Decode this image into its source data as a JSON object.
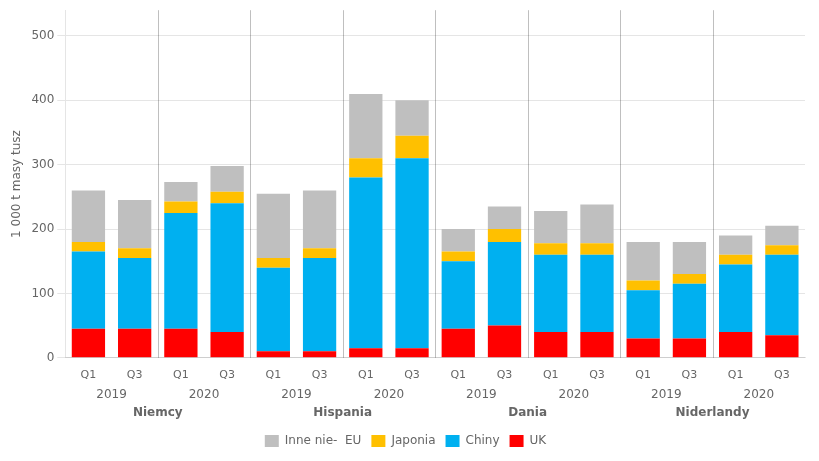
{
  "chart_data": {
    "type": "bar",
    "stacked": true,
    "ylabel": "1 000 t masy tusz",
    "categories": [
      [
        "Q1",
        "2019",
        "Niemcy"
      ],
      [
        "Q3",
        "2019",
        "Niemcy"
      ],
      [
        "Q1",
        "2020",
        "Niemcy"
      ],
      [
        "Q3",
        "2020",
        "Niemcy"
      ],
      [
        "Q1",
        "2019",
        "Hispania"
      ],
      [
        "Q3",
        "2019",
        "Hispania"
      ],
      [
        "Q1",
        "2020",
        "Hispania"
      ],
      [
        "Q3",
        "2020",
        "Hispania"
      ],
      [
        "Q1",
        "2019",
        "Dania"
      ],
      [
        "Q3",
        "2019",
        "Dania"
      ],
      [
        "Q1",
        "2020",
        "Dania"
      ],
      [
        "Q3",
        "2020",
        "Dania"
      ],
      [
        "Q1",
        "2019",
        "Niderlandy"
      ],
      [
        "Q3",
        "2019",
        "Niderlandy"
      ],
      [
        "Q1",
        "2020",
        "Niderlandy"
      ],
      [
        "Q3",
        "2020",
        "Niderlandy"
      ]
    ],
    "series": [
      {
        "name": "UK",
        "color": "#FF0000",
        "values": [
          45,
          45,
          45,
          40,
          10,
          10,
          15,
          15,
          45,
          50,
          40,
          40,
          30,
          30,
          40,
          35
        ]
      },
      {
        "name": "Chiny",
        "color": "#00B0F0",
        "values": [
          120,
          110,
          180,
          200,
          130,
          145,
          265,
          295,
          105,
          130,
          120,
          120,
          75,
          85,
          105,
          125
        ]
      },
      {
        "name": "Japonia",
        "color": "#FFC000",
        "values": [
          15,
          15,
          18,
          18,
          15,
          15,
          30,
          35,
          15,
          20,
          18,
          18,
          15,
          15,
          15,
          15
        ]
      },
      {
        "name": "Inne nie-  EU",
        "color": "#BFBFBF",
        "values": [
          80,
          75,
          30,
          40,
          100,
          90,
          100,
          55,
          35,
          35,
          50,
          60,
          60,
          50,
          30,
          30
        ]
      }
    ],
    "ylim": [
      0,
      540
    ],
    "yticks": [
      0,
      100,
      200,
      300,
      400,
      500
    ],
    "grid": true,
    "legend": "bottom"
  }
}
